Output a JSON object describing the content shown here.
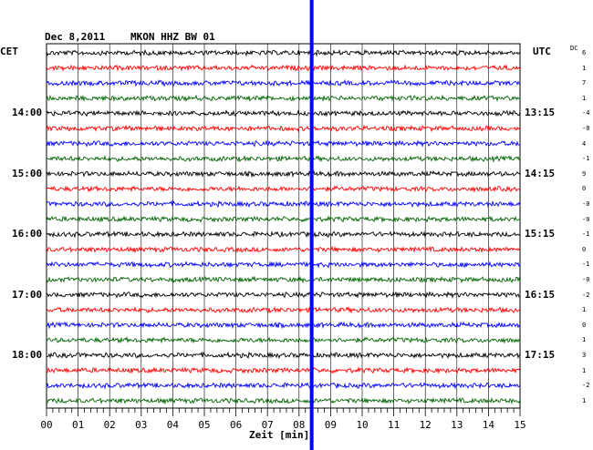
{
  "header": {
    "date": "Dec 8,2011",
    "station": "MKON HHZ BW 01",
    "left_tz": "CET",
    "right_tz": "UTC",
    "dc_label": "DC"
  },
  "colors": {
    "trace_cycle": [
      "#000000",
      "#ff0000",
      "#0000ff",
      "#006400"
    ],
    "grid": "#000000",
    "event": "#0000ff"
  },
  "chart_data": {
    "type": "line",
    "title": "",
    "xlabel": "Zeit [min]",
    "ylabel": "",
    "xlim": [
      0,
      15
    ],
    "x_ticks": [
      "00",
      "01",
      "02",
      "03",
      "04",
      "05",
      "06",
      "07",
      "08",
      "09",
      "10",
      "11",
      "12",
      "13",
      "14",
      "15"
    ],
    "rows": 24,
    "grid": true,
    "left_labels": [
      {
        "row": 4,
        "text": "14:00"
      },
      {
        "row": 8,
        "text": "15:00"
      },
      {
        "row": 12,
        "text": "16:00"
      },
      {
        "row": 16,
        "text": "17:00"
      },
      {
        "row": 20,
        "text": "18:00"
      }
    ],
    "right_labels": [
      {
        "row": 4,
        "text": "13:15"
      },
      {
        "row": 8,
        "text": "14:15"
      },
      {
        "row": 12,
        "text": "15:15"
      },
      {
        "row": 16,
        "text": "16:15"
      },
      {
        "row": 20,
        "text": "17:15"
      }
    ],
    "dc_offsets": [
      "6",
      "1",
      "7",
      "1",
      "-4",
      "-0",
      "4",
      "-1",
      "9",
      "0",
      "-0",
      "-0",
      "-1",
      "0",
      "-1",
      "-0",
      "-2",
      "1",
      "0",
      "1",
      "3",
      "1",
      "-2",
      "1"
    ],
    "event_minute": 8.4
  }
}
